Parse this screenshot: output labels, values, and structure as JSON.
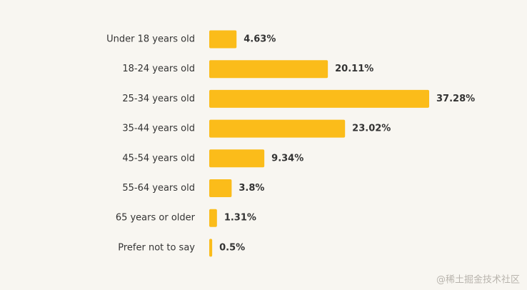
{
  "chart_data": {
    "type": "bar",
    "orientation": "horizontal",
    "categories": [
      "Under 18 years old",
      "18-24 years old",
      "25-34 years old",
      "35-44 years old",
      "45-54 years old",
      "55-64 years old",
      "65 years or older",
      "Prefer not to say"
    ],
    "values": [
      4.63,
      20.11,
      37.28,
      23.02,
      9.34,
      3.8,
      1.31,
      0.5
    ],
    "value_labels": [
      "4.63%",
      "20.11%",
      "37.28%",
      "23.02%",
      "9.34%",
      "3.8%",
      "1.31%",
      "0.5%"
    ],
    "color": "#fbbc1a"
  },
  "watermark": "@稀土掘金技术社区"
}
